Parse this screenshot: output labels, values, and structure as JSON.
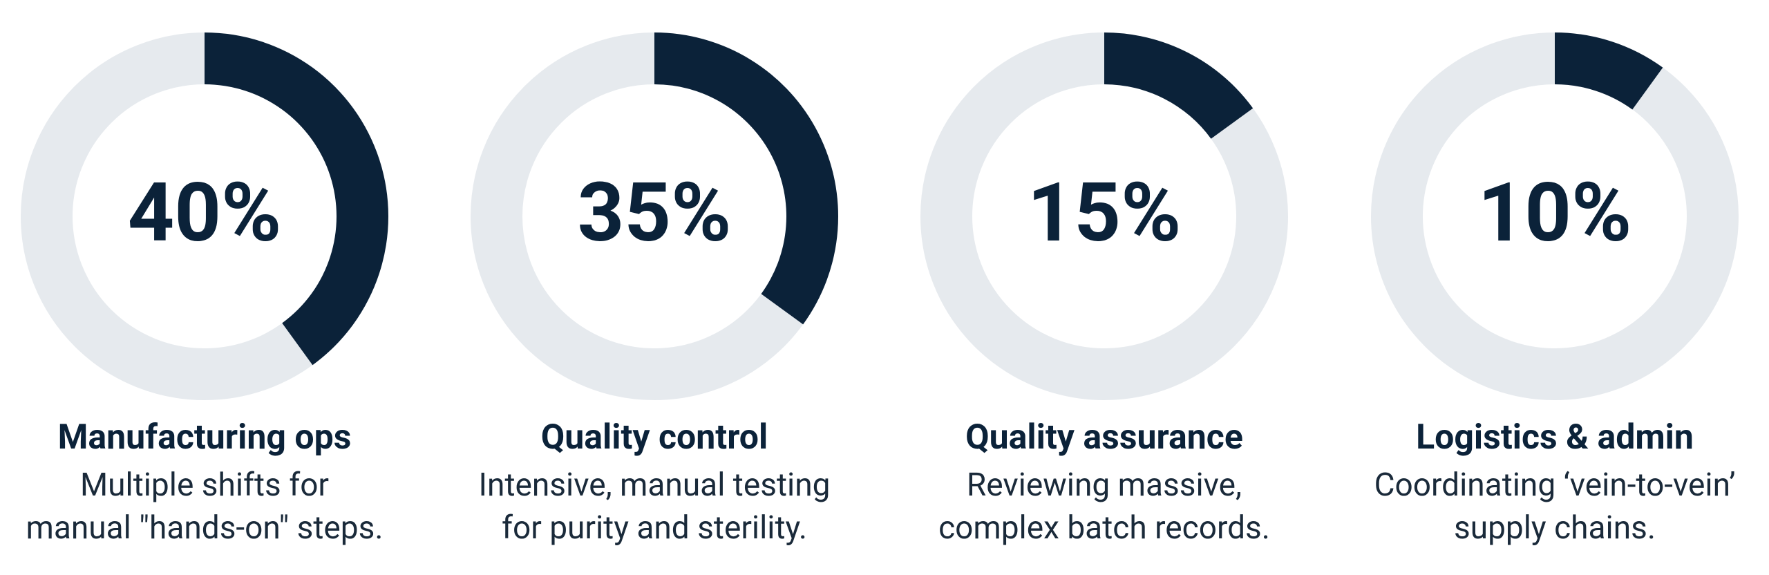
{
  "chart_data": [
    {
      "type": "donut",
      "title": "Manufacturing ops",
      "description": [
        "Multiple shifts for",
        "manual \"hands-on\" steps."
      ],
      "values": [
        40
      ],
      "value_labels": [
        "40%"
      ],
      "color": "#0b2239",
      "track_color": "#e6eaee"
    },
    {
      "type": "donut",
      "title": "Quality control",
      "description": [
        "Intensive, manual testing",
        "for purity and sterility."
      ],
      "values": [
        35
      ],
      "value_labels": [
        "35%"
      ],
      "color": "#0b2239",
      "track_color": "#e6eaee"
    },
    {
      "type": "donut",
      "title": "Quality assurance",
      "description": [
        "Reviewing massive,",
        "complex batch records."
      ],
      "values": [
        15
      ],
      "value_labels": [
        "15%"
      ],
      "color": "#0b2239",
      "track_color": "#e6eaee"
    },
    {
      "type": "donut",
      "title": "Logistics & admin",
      "description": [
        "Coordinating ‘vein-to-vein’",
        "supply chains."
      ],
      "values": [
        10
      ],
      "value_labels": [
        "10%"
      ],
      "color": "#0b2239",
      "track_color": "#e6eaee"
    }
  ]
}
